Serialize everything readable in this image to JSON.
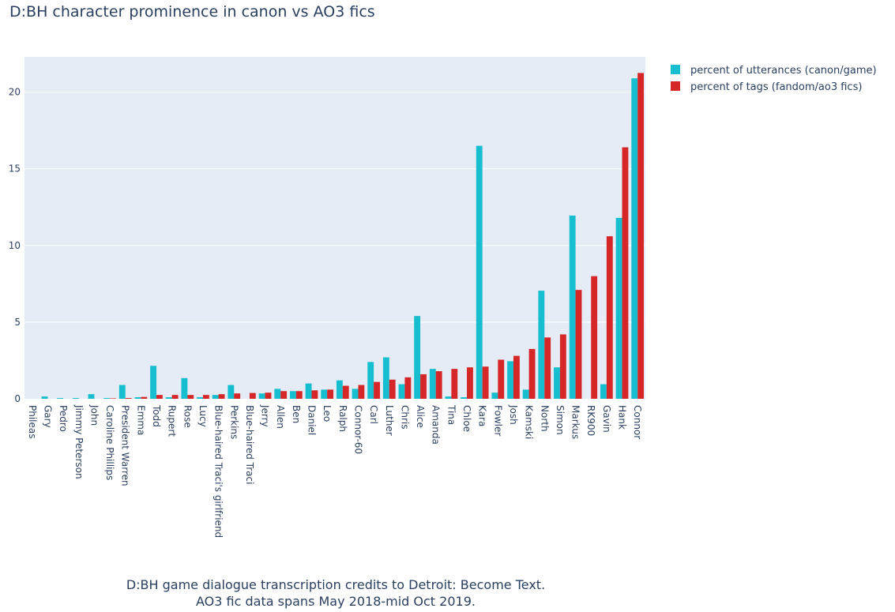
{
  "chart_data": {
    "type": "bar",
    "title": "D:BH character prominence in canon vs AO3 fics",
    "xlabel": "",
    "ylabel": "",
    "ylim": [
      0,
      22.3
    ],
    "yticks": [
      0,
      5,
      10,
      15,
      20
    ],
    "grid": true,
    "legend_position": "top-right",
    "categories": [
      "Phileas",
      "Gary",
      "Pedro",
      "Jimmy Peterson",
      "John",
      "Caroline Phillips",
      "President Warren",
      "Emma",
      "Todd",
      "Rupert",
      "Rose",
      "Lucy",
      "Blue-haired Traci's girlfriend",
      "Perkins",
      "Blue-haired Traci",
      "Jerry",
      "Allen",
      "Ben",
      "Daniel",
      "Leo",
      "Ralph",
      "Connor-60",
      "Carl",
      "Luther",
      "Chris",
      "Alice",
      "Amanda",
      "Tina",
      "Chloe",
      "Kara",
      "Fowler",
      "Josh",
      "Kamski",
      "North",
      "Simon",
      "Markus",
      "RK900",
      "Gavin",
      "Hank",
      "Connor"
    ],
    "series": [
      {
        "name": "percent of utterances (canon/game)",
        "color": "#17becf",
        "values": [
          0.0,
          0.15,
          0.05,
          0.05,
          0.3,
          0.05,
          0.9,
          0.1,
          2.15,
          0.1,
          1.35,
          0.1,
          0.25,
          0.9,
          0.0,
          0.35,
          0.65,
          0.5,
          1.0,
          0.6,
          1.2,
          0.65,
          2.4,
          2.7,
          0.95,
          5.4,
          1.95,
          0.15,
          0.1,
          16.5,
          0.4,
          2.45,
          0.6,
          7.05,
          2.05,
          11.95,
          0.0,
          0.95,
          11.8,
          20.9
        ]
      },
      {
        "name": "percent of tags (fandom/ao3 fics)",
        "color": "#d62728",
        "values": [
          0.0,
          0.0,
          0.0,
          0.0,
          0.0,
          0.03,
          0.05,
          0.12,
          0.25,
          0.25,
          0.25,
          0.25,
          0.3,
          0.35,
          0.38,
          0.4,
          0.5,
          0.5,
          0.55,
          0.6,
          0.85,
          0.9,
          1.1,
          1.25,
          1.4,
          1.6,
          1.8,
          1.95,
          2.05,
          2.1,
          2.55,
          2.8,
          3.25,
          4.0,
          4.2,
          7.1,
          8.0,
          10.6,
          16.4,
          21.25
        ]
      }
    ]
  },
  "caption": {
    "line1": "D:BH game dialogue transcription credits to Detroit: Become Text.",
    "line2": "AO3 fic data spans May 2018-mid Oct 2019."
  }
}
